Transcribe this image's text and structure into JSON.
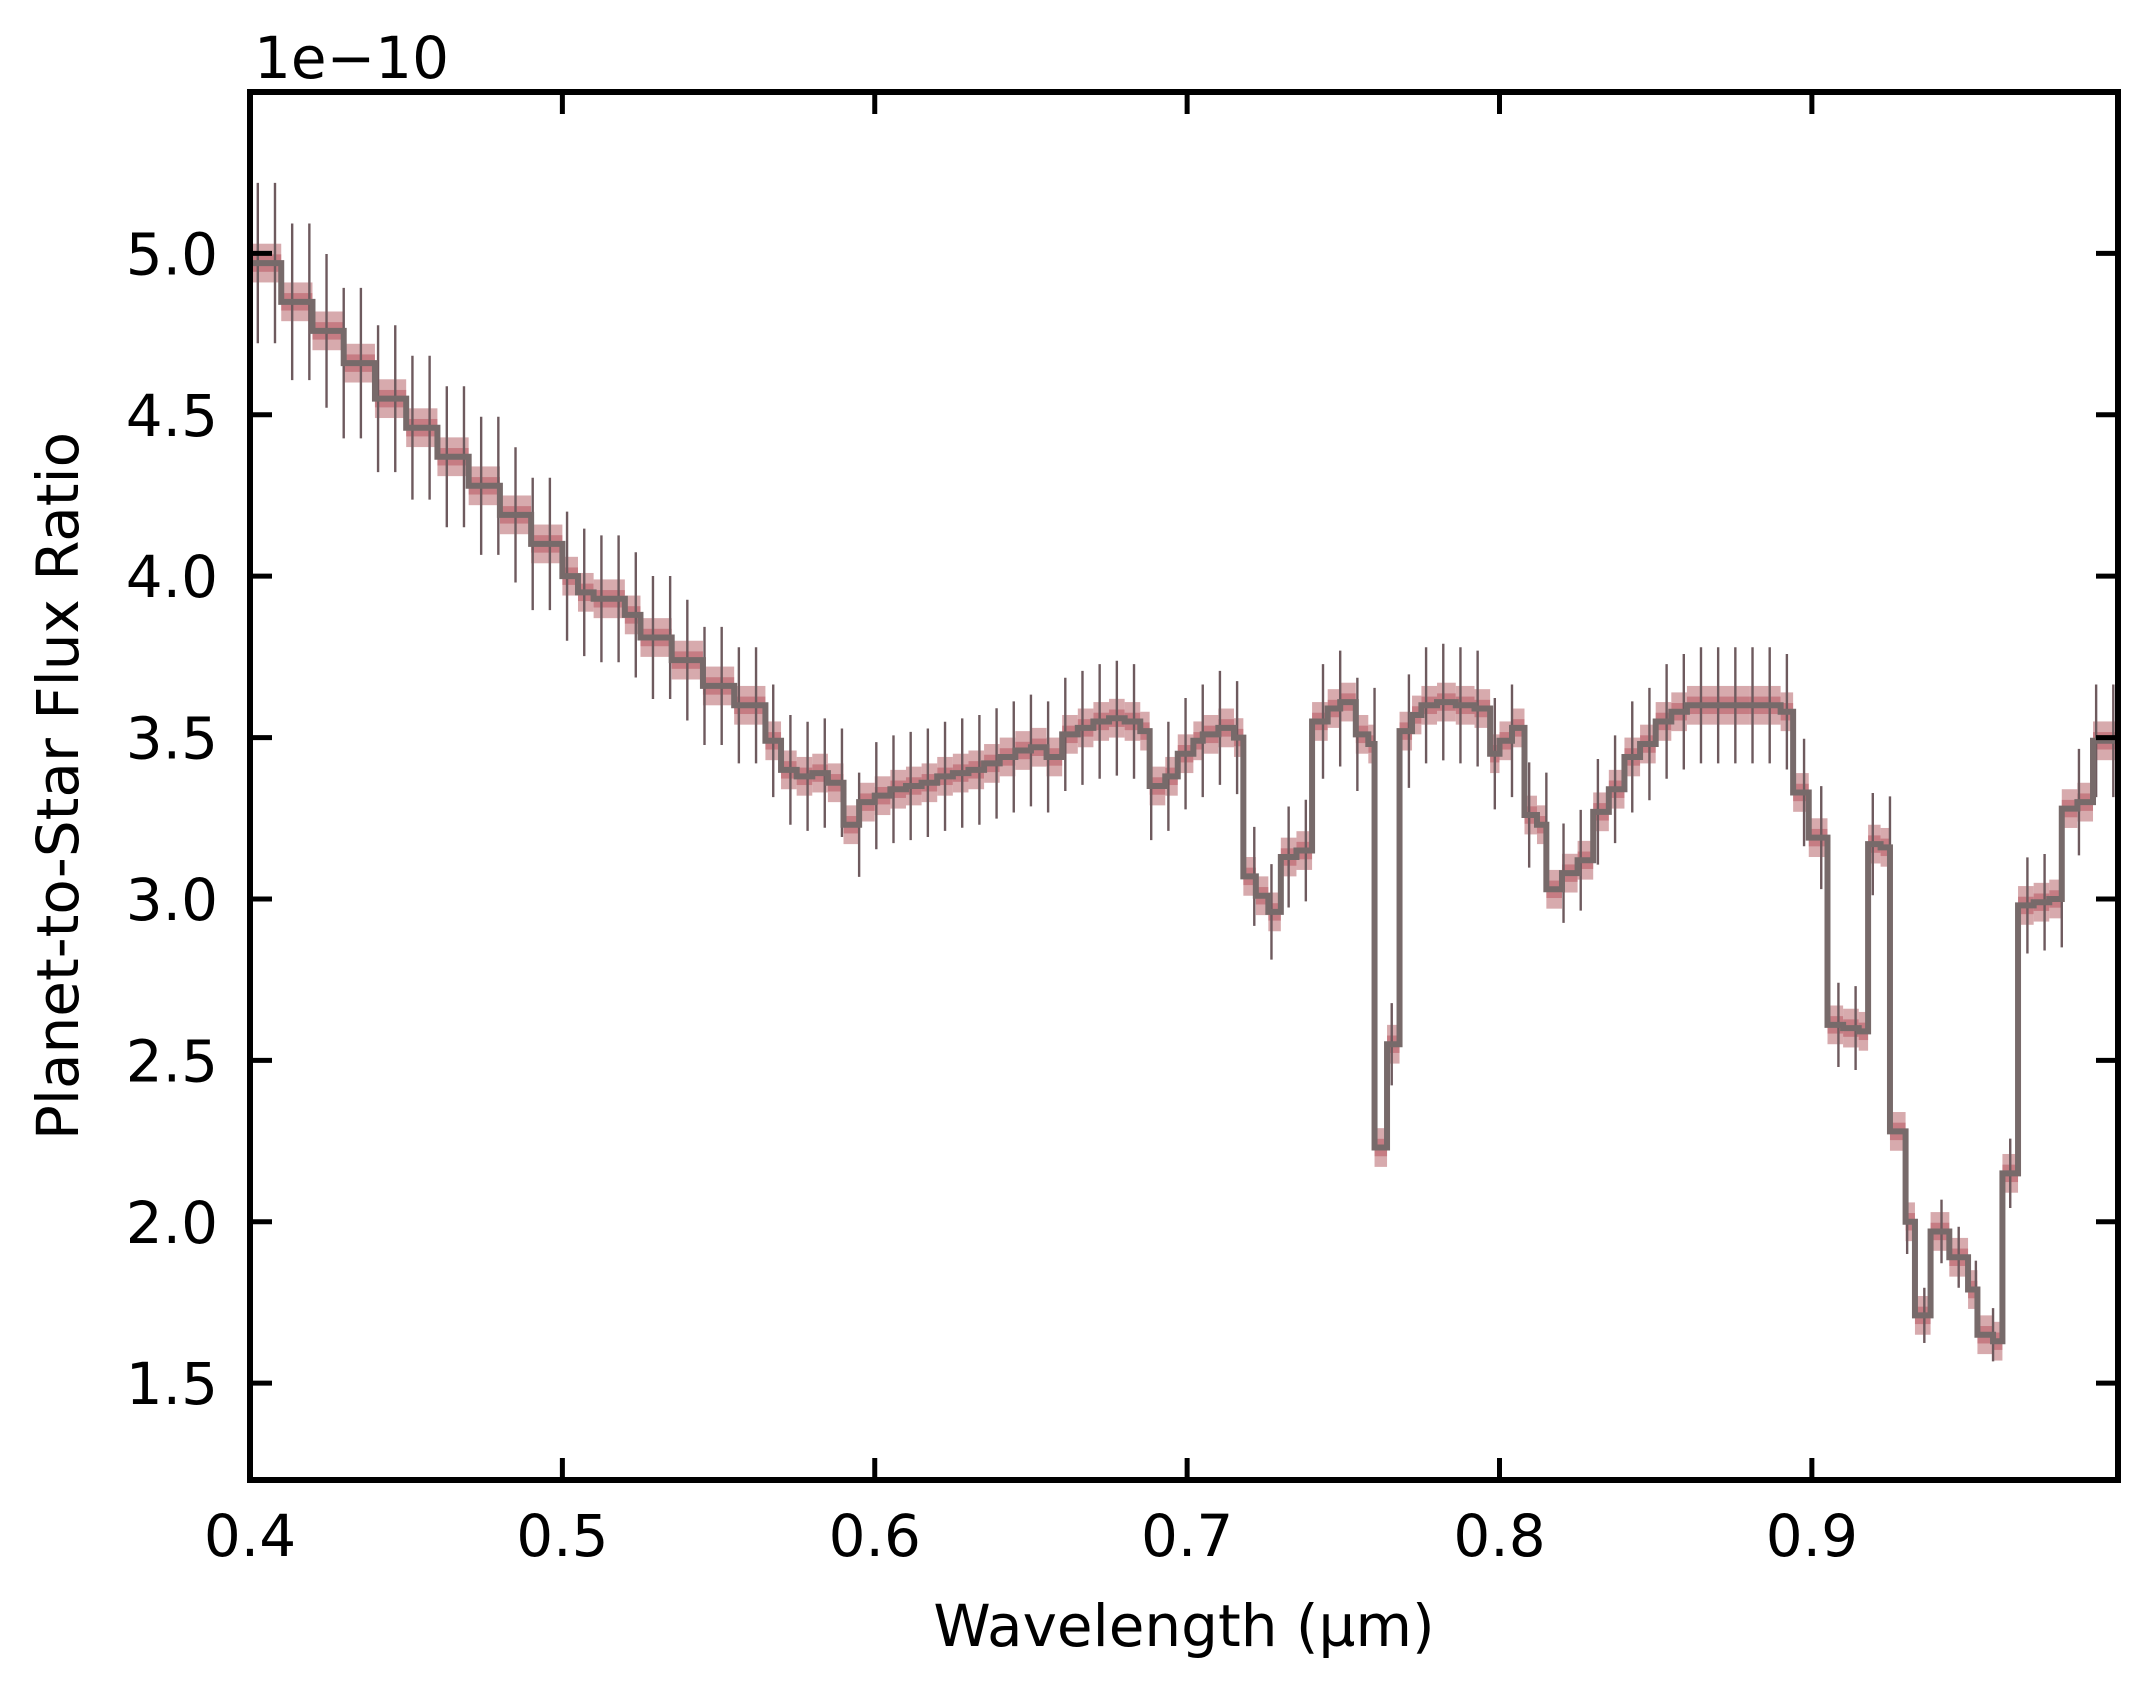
{
  "chart_data": {
    "type": "line",
    "xlabel": "Wavelength (µm)",
    "ylabel": "Planet-to-Star Flux Ratio",
    "y_offset_text": "1e−10",
    "xlim": [
      0.4,
      0.998
    ],
    "ylim": [
      1.2,
      5.5
    ],
    "x_ticks": [
      0.4,
      0.5,
      0.6,
      0.7,
      0.8,
      0.9
    ],
    "x_tick_labels": [
      "0.4",
      "0.5",
      "0.6",
      "0.7",
      "0.8",
      "0.9"
    ],
    "y_ticks": [
      1.5,
      2.0,
      2.5,
      3.0,
      3.5,
      4.0,
      4.5,
      5.0
    ],
    "y_tick_labels": [
      "1.5",
      "2.0",
      "2.5",
      "3.0",
      "3.5",
      "4.0",
      "4.5",
      "5.0"
    ],
    "grid": false,
    "colors": {
      "line": "#776a6a",
      "band": "#c98d92",
      "band_inner": "#b85560",
      "errorbar": "#6e5a5e",
      "frame": "#000000"
    },
    "series": [
      {
        "type": "step",
        "points": [
          [
            0.4,
            4.97
          ],
          [
            0.41,
            4.85
          ],
          [
            0.42,
            4.76
          ],
          [
            0.43,
            4.66
          ],
          [
            0.44,
            4.55
          ],
          [
            0.45,
            4.46
          ],
          [
            0.46,
            4.37
          ],
          [
            0.47,
            4.28
          ],
          [
            0.48,
            4.19
          ],
          [
            0.49,
            4.1
          ],
          [
            0.5,
            4.0
          ],
          [
            0.505,
            3.95
          ],
          [
            0.51,
            3.93
          ],
          [
            0.52,
            3.88
          ],
          [
            0.525,
            3.81
          ],
          [
            0.535,
            3.74
          ],
          [
            0.545,
            3.66
          ],
          [
            0.555,
            3.6
          ],
          [
            0.565,
            3.49
          ],
          [
            0.57,
            3.4
          ],
          [
            0.575,
            3.38
          ],
          [
            0.58,
            3.39
          ],
          [
            0.585,
            3.36
          ],
          [
            0.59,
            3.23
          ],
          [
            0.595,
            3.3
          ],
          [
            0.6,
            3.32
          ],
          [
            0.605,
            3.34
          ],
          [
            0.61,
            3.35
          ],
          [
            0.615,
            3.36
          ],
          [
            0.62,
            3.38
          ],
          [
            0.625,
            3.39
          ],
          [
            0.63,
            3.4
          ],
          [
            0.635,
            3.42
          ],
          [
            0.64,
            3.44
          ],
          [
            0.645,
            3.46
          ],
          [
            0.65,
            3.47
          ],
          [
            0.655,
            3.44
          ],
          [
            0.66,
            3.51
          ],
          [
            0.665,
            3.53
          ],
          [
            0.67,
            3.55
          ],
          [
            0.675,
            3.56
          ],
          [
            0.68,
            3.55
          ],
          [
            0.685,
            3.52
          ],
          [
            0.688,
            3.35
          ],
          [
            0.693,
            3.38
          ],
          [
            0.697,
            3.45
          ],
          [
            0.702,
            3.49
          ],
          [
            0.705,
            3.51
          ],
          [
            0.71,
            3.53
          ],
          [
            0.715,
            3.5
          ],
          [
            0.718,
            3.07
          ],
          [
            0.722,
            3.01
          ],
          [
            0.726,
            2.96
          ],
          [
            0.73,
            3.13
          ],
          [
            0.735,
            3.15
          ],
          [
            0.74,
            3.55
          ],
          [
            0.745,
            3.59
          ],
          [
            0.749,
            3.61
          ],
          [
            0.754,
            3.51
          ],
          [
            0.758,
            3.48
          ],
          [
            0.76,
            2.23
          ],
          [
            0.764,
            2.55
          ],
          [
            0.768,
            3.52
          ],
          [
            0.772,
            3.57
          ],
          [
            0.775,
            3.6
          ],
          [
            0.78,
            3.61
          ],
          [
            0.786,
            3.6
          ],
          [
            0.792,
            3.59
          ],
          [
            0.797,
            3.45
          ],
          [
            0.8,
            3.49
          ],
          [
            0.804,
            3.53
          ],
          [
            0.808,
            3.26
          ],
          [
            0.812,
            3.23
          ],
          [
            0.815,
            3.03
          ],
          [
            0.82,
            3.08
          ],
          [
            0.825,
            3.12
          ],
          [
            0.83,
            3.27
          ],
          [
            0.835,
            3.34
          ],
          [
            0.84,
            3.44
          ],
          [
            0.845,
            3.48
          ],
          [
            0.85,
            3.55
          ],
          [
            0.855,
            3.58
          ],
          [
            0.86,
            3.6
          ],
          [
            0.87,
            3.6
          ],
          [
            0.88,
            3.6
          ],
          [
            0.886,
            3.6
          ],
          [
            0.89,
            3.58
          ],
          [
            0.894,
            3.33
          ],
          [
            0.899,
            3.19
          ],
          [
            0.905,
            2.61
          ],
          [
            0.91,
            2.6
          ],
          [
            0.915,
            2.59
          ],
          [
            0.918,
            3.17
          ],
          [
            0.922,
            3.16
          ],
          [
            0.925,
            2.28
          ],
          [
            0.93,
            2.0
          ],
          [
            0.933,
            1.71
          ],
          [
            0.938,
            1.97
          ],
          [
            0.944,
            1.89
          ],
          [
            0.95,
            1.79
          ],
          [
            0.953,
            1.65
          ],
          [
            0.958,
            1.63
          ],
          [
            0.961,
            2.15
          ],
          [
            0.966,
            2.98
          ],
          [
            0.971,
            2.99
          ],
          [
            0.976,
            3.0
          ],
          [
            0.98,
            3.28
          ],
          [
            0.985,
            3.3
          ],
          [
            0.99,
            3.49
          ],
          [
            0.998,
            3.5
          ]
        ]
      }
    ],
    "band_halfwidth": 0.06,
    "errorbar_halfwidth": 0.2
  }
}
